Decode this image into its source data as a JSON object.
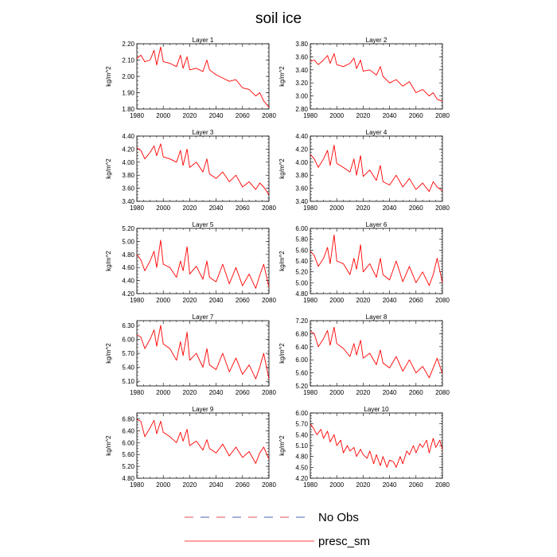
{
  "title": "soil ice",
  "legend": [
    {
      "label": "No Obs",
      "style": "dashed",
      "colors": [
        "#d62728",
        "#1f3aa6"
      ]
    },
    {
      "label": "presc_sm",
      "style": "solid",
      "color": "#ff0000"
    }
  ],
  "chart_data": [
    {
      "type": "line",
      "title": "Layer 1",
      "ylabel": "kg/m^2",
      "xlim": [
        1980,
        2080
      ],
      "ylim": [
        1.8,
        2.2
      ],
      "xticks": [
        "1980",
        "2000",
        "2020",
        "2040",
        "2060",
        "2080"
      ],
      "yticks": [
        "1.80",
        "1.90",
        "2.00",
        "2.10",
        "2.20"
      ],
      "series": [
        {
          "name": "presc_sm",
          "color": "#ff0000",
          "x": [
            1980,
            1983,
            1986,
            1990,
            1993,
            1995,
            1998,
            2000,
            2005,
            2010,
            2013,
            2015,
            2018,
            2020,
            2025,
            2030,
            2033,
            2035,
            2040,
            2045,
            2050,
            2055,
            2060,
            2065,
            2070,
            2073,
            2076,
            2080
          ],
          "y": [
            2.11,
            2.13,
            2.09,
            2.1,
            2.16,
            2.07,
            2.18,
            2.09,
            2.08,
            2.06,
            2.13,
            2.05,
            2.12,
            2.04,
            2.05,
            2.03,
            2.1,
            2.04,
            2.01,
            1.99,
            1.97,
            1.98,
            1.93,
            1.92,
            1.88,
            1.9,
            1.85,
            1.81
          ]
        }
      ]
    },
    {
      "type": "line",
      "title": "Layer 2",
      "ylabel": "kg/m^2",
      "xlim": [
        1980,
        2080
      ],
      "ylim": [
        2.8,
        3.8
      ],
      "xticks": [
        "1980",
        "2000",
        "2020",
        "2040",
        "2060",
        "2080"
      ],
      "yticks": [
        "2.80",
        "3.00",
        "3.20",
        "3.40",
        "3.60",
        "3.80"
      ],
      "series": [
        {
          "name": "presc_sm",
          "color": "#ff0000",
          "x": [
            1980,
            1983,
            1986,
            1990,
            1993,
            1995,
            1998,
            2000,
            2005,
            2010,
            2013,
            2015,
            2018,
            2020,
            2025,
            2030,
            2033,
            2035,
            2040,
            2045,
            2050,
            2055,
            2060,
            2065,
            2070,
            2073,
            2076,
            2080
          ],
          "y": [
            3.53,
            3.55,
            3.48,
            3.55,
            3.62,
            3.5,
            3.65,
            3.48,
            3.45,
            3.5,
            3.58,
            3.42,
            3.55,
            3.38,
            3.4,
            3.32,
            3.45,
            3.3,
            3.2,
            3.25,
            3.15,
            3.22,
            3.05,
            3.1,
            3.0,
            3.05,
            2.95,
            2.92
          ]
        }
      ]
    },
    {
      "type": "line",
      "title": "Layer 3",
      "ylabel": "kg/m^2",
      "xlim": [
        1980,
        2080
      ],
      "ylim": [
        3.4,
        4.4
      ],
      "xticks": [
        "1980",
        "2000",
        "2020",
        "2040",
        "2060",
        "2080"
      ],
      "yticks": [
        "3.40",
        "3.60",
        "3.80",
        "4.00",
        "4.20",
        "4.40"
      ],
      "series": [
        {
          "name": "presc_sm",
          "color": "#ff0000",
          "x": [
            1980,
            1983,
            1986,
            1990,
            1993,
            1995,
            1998,
            2000,
            2005,
            2010,
            2013,
            2015,
            2018,
            2020,
            2025,
            2030,
            2033,
            2035,
            2040,
            2045,
            2050,
            2055,
            2060,
            2065,
            2070,
            2073,
            2076,
            2080
          ],
          "y": [
            4.22,
            4.18,
            4.05,
            4.15,
            4.25,
            4.1,
            4.28,
            4.08,
            4.05,
            4.0,
            4.18,
            3.95,
            4.2,
            3.92,
            4.0,
            3.85,
            4.05,
            3.82,
            3.75,
            3.85,
            3.7,
            3.8,
            3.62,
            3.7,
            3.58,
            3.68,
            3.62,
            3.5
          ]
        }
      ]
    },
    {
      "type": "line",
      "title": "Layer 4",
      "ylabel": "kg/m^2",
      "xlim": [
        1980,
        2080
      ],
      "ylim": [
        3.4,
        4.4
      ],
      "xticks": [
        "1980",
        "2000",
        "2020",
        "2040",
        "2060",
        "2080"
      ],
      "yticks": [
        "3.40",
        "3.60",
        "3.80",
        "4.00",
        "4.20",
        "4.40"
      ],
      "series": [
        {
          "name": "presc_sm",
          "color": "#ff0000",
          "x": [
            1980,
            1983,
            1986,
            1990,
            1993,
            1995,
            1998,
            2000,
            2005,
            2010,
            2013,
            2015,
            2018,
            2020,
            2025,
            2030,
            2033,
            2035,
            2040,
            2045,
            2050,
            2055,
            2060,
            2065,
            2070,
            2073,
            2076,
            2080
          ],
          "y": [
            4.12,
            4.05,
            3.92,
            4.05,
            4.18,
            3.95,
            4.26,
            3.98,
            3.92,
            3.85,
            4.05,
            3.8,
            4.1,
            3.78,
            3.88,
            3.72,
            3.95,
            3.7,
            3.65,
            3.8,
            3.62,
            3.75,
            3.58,
            3.68,
            3.55,
            3.7,
            3.62,
            3.56
          ]
        }
      ]
    },
    {
      "type": "line",
      "title": "Layer 5",
      "ylabel": "kg/m^2",
      "xlim": [
        1980,
        2080
      ],
      "ylim": [
        4.2,
        5.2
      ],
      "xticks": [
        "1980",
        "2000",
        "2020",
        "2040",
        "2060",
        "2080"
      ],
      "yticks": [
        "4.20",
        "4.40",
        "4.60",
        "4.80",
        "5.00",
        "5.20"
      ],
      "series": [
        {
          "name": "presc_sm",
          "color": "#ff0000",
          "x": [
            1980,
            1983,
            1986,
            1990,
            1993,
            1995,
            1998,
            2000,
            2005,
            2010,
            2013,
            2015,
            2018,
            2020,
            2025,
            2030,
            2033,
            2035,
            2040,
            2045,
            2050,
            2055,
            2060,
            2065,
            2070,
            2073,
            2076,
            2080
          ],
          "y": [
            4.8,
            4.72,
            4.55,
            4.7,
            4.85,
            4.6,
            5.02,
            4.65,
            4.6,
            4.45,
            4.7,
            4.55,
            4.92,
            4.5,
            4.62,
            4.42,
            4.7,
            4.45,
            4.38,
            4.65,
            4.35,
            4.6,
            4.32,
            4.5,
            4.28,
            4.48,
            4.65,
            4.3
          ]
        }
      ]
    },
    {
      "type": "line",
      "title": "Layer 6",
      "ylabel": "kg/m^2",
      "xlim": [
        1980,
        2080
      ],
      "ylim": [
        4.8,
        6.0
      ],
      "xticks": [
        "1980",
        "2000",
        "2020",
        "2040",
        "2060",
        "2080"
      ],
      "yticks": [
        "4.80",
        "5.00",
        "5.20",
        "5.40",
        "5.60",
        "5.80",
        "6.00"
      ],
      "series": [
        {
          "name": "presc_sm",
          "color": "#ff0000",
          "x": [
            1980,
            1983,
            1986,
            1990,
            1993,
            1995,
            1998,
            2000,
            2005,
            2010,
            2013,
            2015,
            2018,
            2020,
            2025,
            2030,
            2033,
            2035,
            2040,
            2045,
            2050,
            2055,
            2060,
            2065,
            2070,
            2073,
            2076,
            2080
          ],
          "y": [
            5.58,
            5.5,
            5.3,
            5.45,
            5.65,
            5.35,
            5.88,
            5.4,
            5.35,
            5.15,
            5.45,
            5.25,
            5.7,
            5.2,
            5.35,
            5.1,
            5.45,
            5.15,
            5.05,
            5.4,
            5.02,
            5.3,
            5.0,
            5.2,
            4.95,
            5.15,
            5.45,
            5.0
          ]
        }
      ]
    },
    {
      "type": "line",
      "title": "Layer 7",
      "ylabel": "kg/m^2",
      "xlim": [
        1980,
        2080
      ],
      "ylim": [
        5.0,
        6.4
      ],
      "xticks": [
        "1980",
        "2000",
        "2020",
        "2040",
        "2060",
        "2080"
      ],
      "yticks": [
        "5.10",
        "5.40",
        "5.70",
        "6.00",
        "6.30"
      ],
      "series": [
        {
          "name": "presc_sm",
          "color": "#ff0000",
          "x": [
            1980,
            1983,
            1986,
            1990,
            1993,
            1995,
            1998,
            2000,
            2005,
            2010,
            2013,
            2015,
            2018,
            2020,
            2025,
            2030,
            2033,
            2035,
            2040,
            2045,
            2050,
            2055,
            2060,
            2065,
            2070,
            2073,
            2076,
            2080
          ],
          "y": [
            6.1,
            6.05,
            5.8,
            6.0,
            6.2,
            5.85,
            6.3,
            5.9,
            5.8,
            5.55,
            5.95,
            5.65,
            6.15,
            5.55,
            5.7,
            5.4,
            5.8,
            5.45,
            5.35,
            5.7,
            5.3,
            5.6,
            5.25,
            5.45,
            5.15,
            5.4,
            5.7,
            5.15
          ]
        }
      ]
    },
    {
      "type": "line",
      "title": "Layer 8",
      "ylabel": "kg/m^2",
      "xlim": [
        1980,
        2080
      ],
      "ylim": [
        5.2,
        7.2
      ],
      "xticks": [
        "1980",
        "2000",
        "2020",
        "2040",
        "2060",
        "2080"
      ],
      "yticks": [
        "5.20",
        "5.60",
        "6.00",
        "6.40",
        "6.80",
        "7.20"
      ],
      "series": [
        {
          "name": "presc_sm",
          "color": "#ff0000",
          "x": [
            1980,
            1983,
            1986,
            1990,
            1993,
            1995,
            1998,
            2000,
            2005,
            2010,
            2013,
            2015,
            2018,
            2020,
            2025,
            2030,
            2033,
            2035,
            2040,
            2045,
            2050,
            2055,
            2060,
            2065,
            2070,
            2073,
            2076,
            2080
          ],
          "y": [
            6.88,
            6.8,
            6.4,
            6.65,
            6.9,
            6.45,
            7.0,
            6.5,
            6.35,
            6.1,
            6.5,
            6.15,
            6.6,
            6.05,
            6.2,
            5.85,
            6.3,
            5.9,
            5.75,
            6.1,
            5.65,
            6.0,
            5.6,
            5.8,
            5.45,
            5.75,
            6.05,
            5.58
          ]
        }
      ]
    },
    {
      "type": "line",
      "title": "Layer 9",
      "ylabel": "kg/m^2",
      "xlim": [
        1980,
        2080
      ],
      "ylim": [
        4.8,
        7.0
      ],
      "xticks": [
        "1980",
        "2000",
        "2020",
        "2040",
        "2060",
        "2080"
      ],
      "yticks": [
        "4.80",
        "5.20",
        "5.60",
        "6.00",
        "6.40",
        "6.80"
      ],
      "series": [
        {
          "name": "presc_sm",
          "color": "#ff0000",
          "x": [
            1980,
            1983,
            1986,
            1990,
            1993,
            1995,
            1998,
            2000,
            2005,
            2010,
            2013,
            2015,
            2018,
            2020,
            2025,
            2030,
            2033,
            2035,
            2040,
            2045,
            2050,
            2055,
            2060,
            2065,
            2070,
            2073,
            2076,
            2080
          ],
          "y": [
            6.78,
            6.72,
            6.2,
            6.5,
            6.75,
            6.3,
            6.72,
            6.35,
            6.2,
            6.0,
            6.35,
            6.05,
            6.45,
            5.9,
            6.05,
            5.75,
            6.1,
            5.8,
            5.65,
            5.95,
            5.55,
            5.85,
            5.5,
            5.7,
            5.3,
            5.65,
            5.85,
            5.45
          ]
        }
      ]
    },
    {
      "type": "line",
      "title": "Layer 10",
      "ylabel": "kg/m^2",
      "xlim": [
        1980,
        2080
      ],
      "ylim": [
        4.2,
        6.0
      ],
      "xticks": [
        "1980",
        "2000",
        "2020",
        "2040",
        "2060",
        "2080"
      ],
      "yticks": [
        "4.20",
        "4.50",
        "4.80",
        "5.10",
        "5.40",
        "5.70",
        "6.00"
      ],
      "series": [
        {
          "name": "presc_sm",
          "color": "#ff0000",
          "x": [
            1980,
            1982,
            1985,
            1988,
            1990,
            1993,
            1995,
            1998,
            2000,
            2003,
            2005,
            2008,
            2010,
            2013,
            2015,
            2018,
            2020,
            2023,
            2025,
            2028,
            2030,
            2033,
            2035,
            2038,
            2040,
            2043,
            2045,
            2048,
            2050,
            2053,
            2055,
            2058,
            2060,
            2063,
            2065,
            2068,
            2070,
            2073,
            2075,
            2078,
            2080
          ],
          "y": [
            5.7,
            5.6,
            5.4,
            5.55,
            5.3,
            5.5,
            5.2,
            5.4,
            5.1,
            5.25,
            4.9,
            5.1,
            4.95,
            5.05,
            4.8,
            5.0,
            4.85,
            4.75,
            4.95,
            4.6,
            4.85,
            4.55,
            4.8,
            4.5,
            4.7,
            4.65,
            4.5,
            4.8,
            4.6,
            4.95,
            4.85,
            5.1,
            4.9,
            5.15,
            5.05,
            5.25,
            4.9,
            5.3,
            5.05,
            5.25,
            5.0
          ]
        }
      ]
    }
  ]
}
